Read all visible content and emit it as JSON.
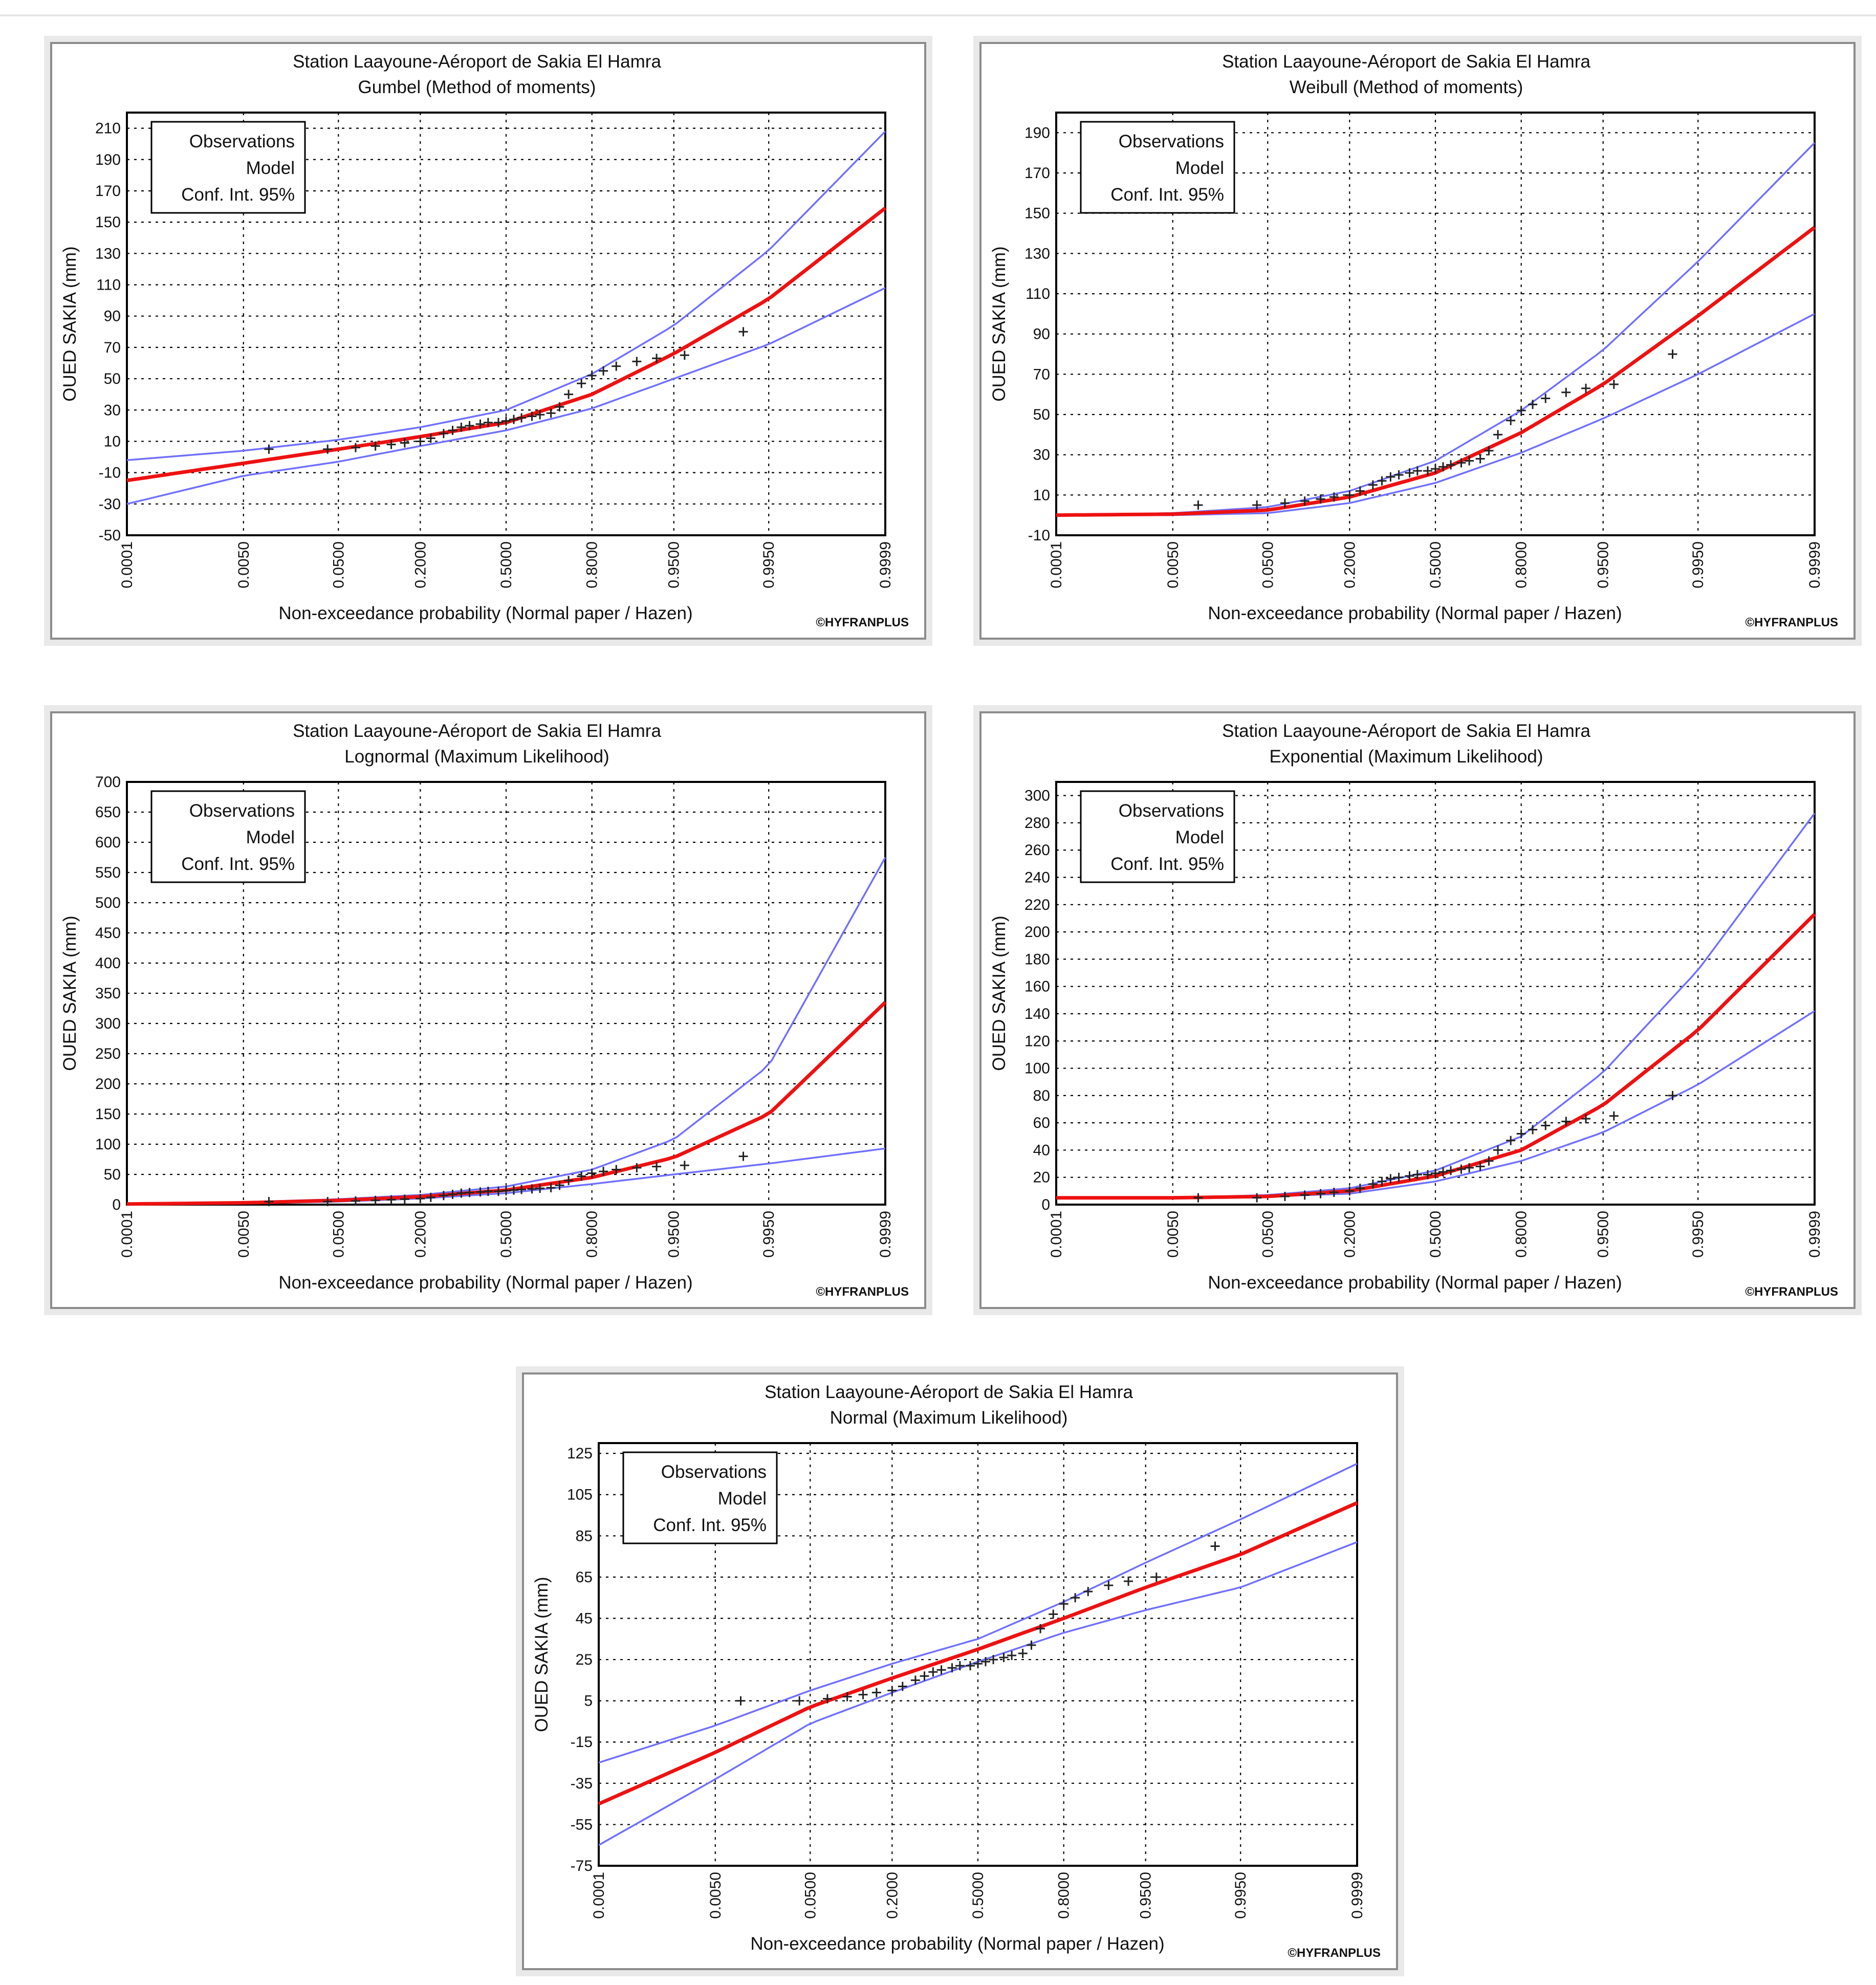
{
  "colors": {
    "model": "#ee1111",
    "confidence": "#7070ff",
    "observations": "#222222",
    "panel_bg": "#e9e9e9"
  },
  "common": {
    "station": "Station Laayoune-Aéroport de  Sakia El Hamra",
    "ylabel": "OUED SAKIA (mm)",
    "xlabel": "Non-exceedance probability (Normal paper / Hazen)",
    "legend": [
      "Observations",
      "Model",
      "Conf. Int. 95%"
    ],
    "brand": "©HYFRANPLUS",
    "x_tick_labels": [
      "0.0001",
      "0.0050",
      "0.0500",
      "0.2000",
      "0.5000",
      "0.8000",
      "0.9500",
      "0.9950",
      "0.9999"
    ],
    "observations_p": [
      0.01,
      0.04,
      0.07,
      0.1,
      0.13,
      0.16,
      0.2,
      0.23,
      0.27,
      0.3,
      0.33,
      0.36,
      0.4,
      0.43,
      0.47,
      0.5,
      0.53,
      0.56,
      0.6,
      0.63,
      0.67,
      0.7,
      0.73,
      0.77,
      0.8,
      0.83,
      0.86,
      0.9,
      0.93,
      0.96,
      0.99
    ],
    "observations_mm": [
      5,
      5,
      6,
      7,
      8,
      9,
      10,
      12,
      15,
      17,
      19,
      20,
      21,
      22,
      22,
      23,
      24,
      25,
      26,
      27,
      28,
      32,
      40,
      47,
      52,
      55,
      58,
      61,
      63,
      65,
      80
    ]
  },
  "chart_data": [
    {
      "type": "line",
      "title": "Station Laayoune-Aéroport de  Sakia El Hamra",
      "subtitle": "Gumbel (Method of moments)",
      "xlabel": "Non-exceedance probability (Normal paper / Hazen)",
      "ylabel": "OUED SAKIA (mm)",
      "x_scale": "normal-probability",
      "ylim": [
        -50,
        220
      ],
      "y_ticks": [
        -50,
        -30,
        -10,
        10,
        30,
        50,
        70,
        90,
        110,
        130,
        150,
        170,
        190,
        210
      ],
      "grid": true,
      "legend_position": "top-left",
      "x": [
        0.0001,
        0.005,
        0.05,
        0.2,
        0.5,
        0.8,
        0.95,
        0.995,
        0.9999
      ],
      "series": [
        {
          "name": "Model",
          "values": [
            -15,
            -4,
            5,
            13,
            22,
            40,
            66,
            101,
            159
          ]
        },
        {
          "name": "Conf. Int. 95% upper",
          "values": [
            -2,
            4,
            11,
            19,
            30,
            53,
            84,
            132,
            208
          ]
        },
        {
          "name": "Conf. Int. 95% lower",
          "values": [
            -30,
            -12,
            -3,
            7,
            17,
            31,
            50,
            72,
            108
          ]
        }
      ]
    },
    {
      "type": "line",
      "title": "Station Laayoune-Aéroport de  Sakia El Hamra",
      "subtitle": "Weibull (Method of moments)",
      "xlabel": "Non-exceedance probability (Normal paper / Hazen)",
      "ylabel": "OUED SAKIA (mm)",
      "x_scale": "normal-probability",
      "ylim": [
        -10,
        200
      ],
      "y_ticks": [
        -10,
        10,
        30,
        50,
        70,
        90,
        110,
        130,
        150,
        170,
        190
      ],
      "grid": true,
      "legend_position": "top-left",
      "x": [
        0.0001,
        0.005,
        0.05,
        0.2,
        0.5,
        0.8,
        0.95,
        0.995,
        0.9999
      ],
      "series": [
        {
          "name": "Model",
          "values": [
            0,
            0.5,
            2.5,
            9,
            21,
            41,
            65,
            99,
            143
          ]
        },
        {
          "name": "Conf. Int. 95% upper",
          "values": [
            0,
            1,
            4,
            12,
            27,
            52,
            82,
            126,
            185
          ]
        },
        {
          "name": "Conf. Int. 95% lower",
          "values": [
            0,
            0,
            1,
            6,
            16,
            31,
            48,
            70,
            100
          ]
        }
      ]
    },
    {
      "type": "line",
      "title": "Station Laayoune-Aéroport de  Sakia El Hamra",
      "subtitle": "Lognormal (Maximum Likelihood)",
      "xlabel": "Non-exceedance probability (Normal paper / Hazen)",
      "ylabel": "OUED SAKIA (mm)",
      "x_scale": "normal-probability",
      "ylim": [
        0,
        700
      ],
      "y_ticks": [
        0,
        50,
        100,
        150,
        200,
        250,
        300,
        350,
        400,
        450,
        500,
        550,
        600,
        650,
        700
      ],
      "grid": true,
      "legend_position": "top-left",
      "x": [
        0.0001,
        0.005,
        0.05,
        0.2,
        0.5,
        0.8,
        0.95,
        0.995,
        0.9999
      ],
      "series": [
        {
          "name": "Model",
          "values": [
            1,
            3,
            7,
            13,
            24,
            45,
            78,
            150,
            335
          ]
        },
        {
          "name": "Conf. Int. 95% upper",
          "values": [
            2,
            4,
            9,
            16,
            30,
            58,
            108,
            230,
            575
          ]
        },
        {
          "name": "Conf. Int. 95% lower",
          "values": [
            0.5,
            2,
            5,
            10,
            19,
            34,
            50,
            68,
            93
          ]
        }
      ]
    },
    {
      "type": "line",
      "title": "Station Laayoune-Aéroport de  Sakia El Hamra",
      "subtitle": "Exponential (Maximum Likelihood)",
      "xlabel": "Non-exceedance probability (Normal paper / Hazen)",
      "ylabel": "OUED SAKIA (mm)",
      "x_scale": "normal-probability",
      "ylim": [
        0,
        310
      ],
      "y_ticks": [
        0,
        20,
        40,
        60,
        80,
        100,
        120,
        140,
        160,
        180,
        200,
        220,
        240,
        260,
        280,
        300
      ],
      "grid": true,
      "legend_position": "top-left",
      "x": [
        0.0001,
        0.005,
        0.05,
        0.2,
        0.5,
        0.8,
        0.95,
        0.995,
        0.9999
      ],
      "series": [
        {
          "name": "Model",
          "values": [
            5,
            5,
            6,
            10,
            21,
            40,
            73,
            128,
            213
          ]
        },
        {
          "name": "Conf. Int. 95% upper",
          "values": [
            5,
            5,
            7,
            12,
            25,
            50,
            97,
            172,
            287
          ]
        },
        {
          "name": "Conf. Int. 95% lower",
          "values": [
            5,
            5,
            6,
            8,
            17,
            32,
            53,
            88,
            142
          ]
        }
      ]
    },
    {
      "type": "line",
      "title": "Station Laayoune-Aéroport de  Sakia El Hamra",
      "subtitle": "Normal (Maximum Likelihood)",
      "xlabel": "Non-exceedance probability (Normal paper / Hazen)",
      "ylabel": "OUED SAKIA (mm)",
      "x_scale": "normal-probability",
      "ylim": [
        -75,
        130
      ],
      "y_ticks": [
        -75,
        -55,
        -35,
        -15,
        5,
        25,
        45,
        65,
        85,
        105,
        125
      ],
      "grid": true,
      "legend_position": "top-left",
      "x": [
        0.0001,
        0.005,
        0.05,
        0.2,
        0.5,
        0.8,
        0.95,
        0.995,
        0.9999
      ],
      "series": [
        {
          "name": "Model",
          "values": [
            -45,
            -20,
            2,
            16,
            30,
            45,
            60,
            76,
            101
          ]
        },
        {
          "name": "Conf. Int. 95% upper",
          "values": [
            -25,
            -7,
            10,
            23,
            35,
            53,
            72,
            93,
            120
          ]
        },
        {
          "name": "Conf. Int. 95% lower",
          "values": [
            -65,
            -33,
            -6,
            9,
            24,
            38,
            49,
            60,
            82
          ]
        }
      ]
    }
  ]
}
